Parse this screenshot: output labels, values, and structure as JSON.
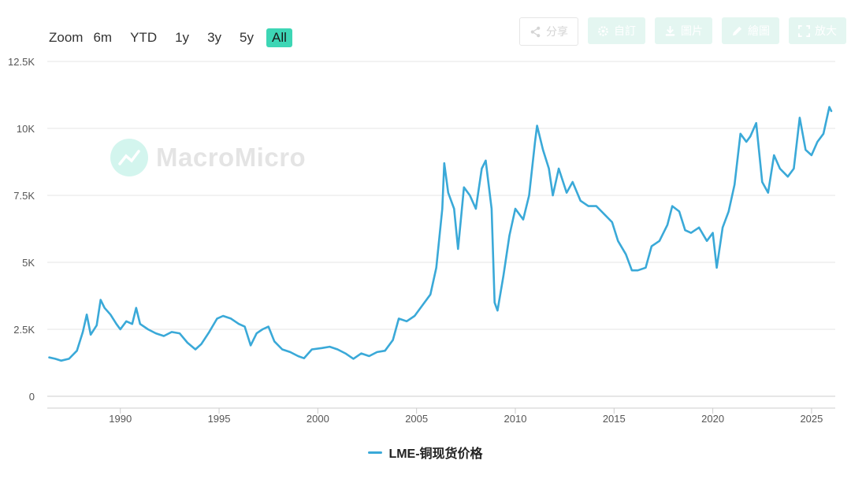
{
  "zoom": {
    "label": "Zoom",
    "buttons": [
      "6m",
      "YTD",
      "1y",
      "3y",
      "5y",
      "All"
    ],
    "active": "All"
  },
  "toolbar": {
    "share": "分享",
    "settings": "自訂",
    "image": "圖片",
    "draw": "繪圖",
    "expand": "放大"
  },
  "watermark": "MacroMicro",
  "colors": {
    "series": "#3aa9d8",
    "accent": "#3dd6b5",
    "grid": "#e6e6e6"
  },
  "chart_data": {
    "type": "line",
    "title": "",
    "xlabel": "",
    "ylabel": "",
    "xlim": [
      1986.3,
      2026.2
    ],
    "ylim": [
      0,
      12500
    ],
    "xticks": [
      1990,
      1995,
      2000,
      2005,
      2010,
      2015,
      2020,
      2025
    ],
    "xtick_labels": [
      "1990",
      "1995",
      "2000",
      "2005",
      "2010",
      "2015",
      "2020",
      "2025"
    ],
    "yticks": [
      0,
      2500,
      5000,
      7500,
      10000,
      12500
    ],
    "ytick_labels": [
      "0",
      "2.5K",
      "5K",
      "7.5K",
      "10K",
      "12.5K"
    ],
    "grid": "horizontal",
    "legend_position": "bottom-center",
    "series": [
      {
        "name": "LME-铜现货价格",
        "points": [
          [
            1986.4,
            1450
          ],
          [
            1986.7,
            1400
          ],
          [
            1987.0,
            1330
          ],
          [
            1987.4,
            1400
          ],
          [
            1987.8,
            1700
          ],
          [
            1988.1,
            2400
          ],
          [
            1988.3,
            3050
          ],
          [
            1988.5,
            2300
          ],
          [
            1988.8,
            2650
          ],
          [
            1989.0,
            3600
          ],
          [
            1989.2,
            3300
          ],
          [
            1989.5,
            3050
          ],
          [
            1989.8,
            2700
          ],
          [
            1990.0,
            2500
          ],
          [
            1990.3,
            2800
          ],
          [
            1990.6,
            2700
          ],
          [
            1990.8,
            3300
          ],
          [
            1991.0,
            2700
          ],
          [
            1991.4,
            2500
          ],
          [
            1991.8,
            2350
          ],
          [
            1992.2,
            2250
          ],
          [
            1992.6,
            2400
          ],
          [
            1993.0,
            2350
          ],
          [
            1993.4,
            2000
          ],
          [
            1993.8,
            1750
          ],
          [
            1994.1,
            1950
          ],
          [
            1994.5,
            2400
          ],
          [
            1994.9,
            2900
          ],
          [
            1995.2,
            3000
          ],
          [
            1995.6,
            2900
          ],
          [
            1996.0,
            2700
          ],
          [
            1996.3,
            2600
          ],
          [
            1996.6,
            1900
          ],
          [
            1996.9,
            2350
          ],
          [
            1997.2,
            2500
          ],
          [
            1997.5,
            2600
          ],
          [
            1997.8,
            2050
          ],
          [
            1998.2,
            1750
          ],
          [
            1998.6,
            1650
          ],
          [
            1999.0,
            1500
          ],
          [
            1999.3,
            1420
          ],
          [
            1999.7,
            1750
          ],
          [
            2000.2,
            1800
          ],
          [
            2000.6,
            1850
          ],
          [
            2001.0,
            1750
          ],
          [
            2001.4,
            1600
          ],
          [
            2001.8,
            1400
          ],
          [
            2002.2,
            1600
          ],
          [
            2002.6,
            1500
          ],
          [
            2003.0,
            1650
          ],
          [
            2003.4,
            1700
          ],
          [
            2003.8,
            2100
          ],
          [
            2004.1,
            2900
          ],
          [
            2004.5,
            2800
          ],
          [
            2004.9,
            3000
          ],
          [
            2005.3,
            3400
          ],
          [
            2005.7,
            3800
          ],
          [
            2006.0,
            4800
          ],
          [
            2006.3,
            7000
          ],
          [
            2006.4,
            8700
          ],
          [
            2006.6,
            7600
          ],
          [
            2006.9,
            7000
          ],
          [
            2007.1,
            5500
          ],
          [
            2007.4,
            7800
          ],
          [
            2007.7,
            7500
          ],
          [
            2008.0,
            7000
          ],
          [
            2008.3,
            8500
          ],
          [
            2008.5,
            8800
          ],
          [
            2008.8,
            7000
          ],
          [
            2008.95,
            3500
          ],
          [
            2009.1,
            3200
          ],
          [
            2009.4,
            4500
          ],
          [
            2009.7,
            6000
          ],
          [
            2010.0,
            7000
          ],
          [
            2010.4,
            6600
          ],
          [
            2010.7,
            7500
          ],
          [
            2011.0,
            9500
          ],
          [
            2011.1,
            10100
          ],
          [
            2011.4,
            9200
          ],
          [
            2011.7,
            8500
          ],
          [
            2011.9,
            7500
          ],
          [
            2012.2,
            8500
          ],
          [
            2012.6,
            7600
          ],
          [
            2012.9,
            8000
          ],
          [
            2013.3,
            7300
          ],
          [
            2013.7,
            7100
          ],
          [
            2014.1,
            7100
          ],
          [
            2014.5,
            6800
          ],
          [
            2014.9,
            6500
          ],
          [
            2015.2,
            5800
          ],
          [
            2015.6,
            5300
          ],
          [
            2015.9,
            4700
          ],
          [
            2016.2,
            4700
          ],
          [
            2016.6,
            4800
          ],
          [
            2016.9,
            5600
          ],
          [
            2017.3,
            5800
          ],
          [
            2017.7,
            6400
          ],
          [
            2017.95,
            7100
          ],
          [
            2018.3,
            6900
          ],
          [
            2018.6,
            6200
          ],
          [
            2018.9,
            6100
          ],
          [
            2019.3,
            6300
          ],
          [
            2019.7,
            5800
          ],
          [
            2020.0,
            6100
          ],
          [
            2020.2,
            4800
          ],
          [
            2020.5,
            6300
          ],
          [
            2020.8,
            6900
          ],
          [
            2021.1,
            7900
          ],
          [
            2021.4,
            9800
          ],
          [
            2021.7,
            9500
          ],
          [
            2021.9,
            9700
          ],
          [
            2022.2,
            10200
          ],
          [
            2022.5,
            8000
          ],
          [
            2022.8,
            7600
          ],
          [
            2023.1,
            9000
          ],
          [
            2023.4,
            8500
          ],
          [
            2023.8,
            8200
          ],
          [
            2024.1,
            8500
          ],
          [
            2024.4,
            10400
          ],
          [
            2024.7,
            9200
          ],
          [
            2025.0,
            9000
          ],
          [
            2025.3,
            9500
          ],
          [
            2025.6,
            9800
          ],
          [
            2025.9,
            10800
          ],
          [
            2026.0,
            10650
          ]
        ]
      }
    ]
  }
}
